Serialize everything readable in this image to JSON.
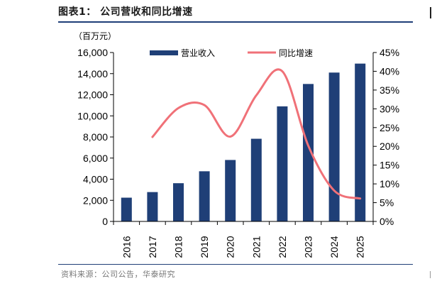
{
  "figure": {
    "title": "图表1：  公司营收和同比增速",
    "source": "资料来源：公司公告，华泰研究"
  },
  "chart_data": {
    "type": "bar",
    "categories": [
      "2016",
      "2017",
      "2018",
      "2019",
      "2020",
      "2021",
      "2022",
      "2023",
      "2024",
      "2025"
    ],
    "y_unit_label": "（百万元）",
    "y_left": {
      "lim": [
        0,
        16000
      ],
      "ticks": [
        "0",
        "2,000",
        "4,000",
        "6,000",
        "8,000",
        "10,000",
        "12,000",
        "14,000",
        "16,000"
      ]
    },
    "y_right": {
      "lim": [
        0,
        45
      ],
      "ticks": [
        "0%",
        "5%",
        "10%",
        "15%",
        "20%",
        "25%",
        "30%",
        "35%",
        "40%",
        "45%"
      ]
    },
    "series": [
      {
        "name": "营业收入",
        "kind": "bar",
        "axis": "left",
        "color": "#1f3f77",
        "values": [
          2250,
          2780,
          3620,
          4750,
          5820,
          7830,
          10900,
          13020,
          14100,
          14950
        ]
      },
      {
        "name": "同比增速",
        "kind": "line",
        "axis": "right",
        "color": "#f07178",
        "values": [
          null,
          22.5,
          30.2,
          31.0,
          22.6,
          33.6,
          40.0,
          20.2,
          8.2,
          6.1
        ]
      }
    ],
    "legend_position": "top-center",
    "grid": false
  },
  "colors": {
    "bar": "#1f3f77",
    "line": "#f07178",
    "rule": "#1f3f77"
  }
}
